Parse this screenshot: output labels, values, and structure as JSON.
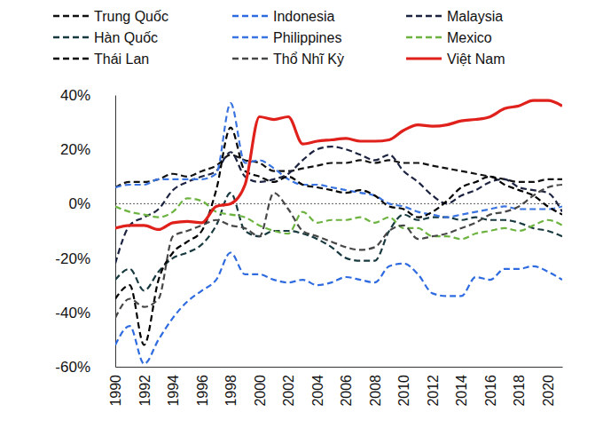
{
  "chart_data": {
    "type": "line",
    "x": [
      1990,
      1991,
      1992,
      1993,
      1994,
      1995,
      1996,
      1997,
      1998,
      1999,
      2000,
      2001,
      2002,
      2003,
      2004,
      2005,
      2006,
      2007,
      2008,
      2009,
      2010,
      2011,
      2012,
      2013,
      2014,
      2015,
      2016,
      2017,
      2018,
      2019,
      2020,
      2021
    ],
    "xlim": [
      1990,
      2021
    ],
    "xticks": [
      1990,
      1992,
      1994,
      1996,
      1998,
      2000,
      2002,
      2004,
      2006,
      2008,
      2010,
      2012,
      2014,
      2016,
      2018,
      2020
    ],
    "ylim": [
      -60,
      40
    ],
    "yticks": [
      {
        "value": -60,
        "label": "-60%"
      },
      {
        "value": -40,
        "label": "-40%"
      },
      {
        "value": -20,
        "label": "-20%"
      },
      {
        "value": 0,
        "label": "0%"
      },
      {
        "value": 20,
        "label": "20%"
      },
      {
        "value": 40,
        "label": "40%"
      }
    ],
    "grid": false,
    "legend": "top",
    "series": [
      {
        "name": "Trung Quốc",
        "color": "#111111",
        "line_style": "dashed",
        "values": [
          6,
          8,
          8,
          9,
          11,
          10,
          12,
          14,
          18,
          16,
          15,
          12,
          12,
          13,
          14,
          15,
          15,
          16,
          15,
          16,
          15,
          15,
          14,
          13,
          12,
          11,
          10,
          9,
          8,
          8,
          9,
          9
        ]
      },
      {
        "name": "Indonesia",
        "color": "#2f6be0",
        "line_style": "dashed",
        "values": [
          -52,
          -45,
          -59,
          -50,
          -42,
          -36,
          -32,
          -28,
          -18,
          -26,
          -26,
          -28,
          -29,
          -28,
          -30,
          -29,
          -27,
          -28,
          -29,
          -23,
          -22,
          -26,
          -33,
          -34,
          -34,
          -27,
          -28,
          -24,
          -24,
          -23,
          -25,
          -28
        ]
      },
      {
        "name": "Malaysia",
        "color": "#1c2340",
        "line_style": "dashed",
        "values": [
          -22,
          -8,
          -5,
          -2,
          5,
          8,
          10,
          12,
          19,
          10,
          8,
          9,
          11,
          16,
          20,
          21,
          20,
          18,
          16,
          18,
          12,
          8,
          3,
          0,
          3,
          5,
          8,
          9,
          6,
          5,
          4,
          -3
        ]
      },
      {
        "name": "Hàn Quốc",
        "color": "#17393f",
        "line_style": "dashed",
        "values": [
          -28,
          -24,
          -32,
          -25,
          -20,
          -18,
          -15,
          -8,
          4,
          -10,
          -12,
          -10,
          -10,
          -11,
          -13,
          -16,
          -20,
          -21,
          -21,
          -10,
          -4,
          -6,
          -5,
          -5,
          -6,
          -5,
          -6,
          -6,
          -7,
          -9,
          -10,
          -12
        ]
      },
      {
        "name": "Philippines",
        "color": "#3a74e0",
        "line_style": "dashed",
        "values": [
          6,
          7,
          7,
          9,
          9,
          9,
          9,
          11,
          37,
          15,
          16,
          13,
          9,
          7,
          7,
          6,
          5,
          4,
          3,
          0,
          -1,
          -3,
          -4,
          -5,
          -4,
          -3,
          -2,
          -1,
          -2,
          -2,
          -2,
          -1
        ]
      },
      {
        "name": "Mexico",
        "color": "#6cb33f",
        "line_style": "dashed",
        "values": [
          -1,
          -3,
          -4,
          -5,
          -3,
          2,
          1,
          -3,
          -4,
          -5,
          -8,
          -10,
          -11,
          -3,
          -7,
          -6,
          -6,
          -5,
          -7,
          -5,
          -9,
          -9,
          -12,
          -12,
          -13,
          -11,
          -10,
          -9,
          -10,
          -8,
          -6,
          -8
        ]
      },
      {
        "name": "Thái Lan",
        "color": "#000000",
        "line_style": "dashed",
        "values": [
          -35,
          -30,
          -52,
          -28,
          -18,
          -14,
          -10,
          5,
          28,
          12,
          10,
          8,
          10,
          7,
          6,
          5,
          4,
          5,
          3,
          -1,
          -2,
          -5,
          -3,
          1,
          6,
          8,
          10,
          7,
          5,
          3,
          -1,
          -4
        ]
      },
      {
        "name": "Thổ Nhĩ Kỳ",
        "color": "#474747",
        "line_style": "dashed",
        "values": [
          -42,
          -35,
          -38,
          -35,
          -12,
          -10,
          -8,
          -6,
          -8,
          -9,
          -12,
          4,
          -2,
          -10,
          -12,
          -14,
          -16,
          -17,
          -16,
          -10,
          -8,
          -13,
          -12,
          -11,
          -9,
          -7,
          -4,
          -3,
          -1,
          3,
          6,
          7
        ]
      },
      {
        "name": "Việt Nam",
        "color": "#e0201b",
        "line_style": "solid",
        "values": [
          -9,
          -8,
          -8,
          -9.5,
          -7,
          -6.5,
          -7,
          -1,
          0,
          7,
          32,
          31,
          32,
          22,
          23,
          23.5,
          24,
          23,
          23,
          23.5,
          27,
          29,
          28.5,
          29,
          30.5,
          31,
          32,
          35,
          36,
          38,
          38,
          36
        ]
      }
    ]
  }
}
